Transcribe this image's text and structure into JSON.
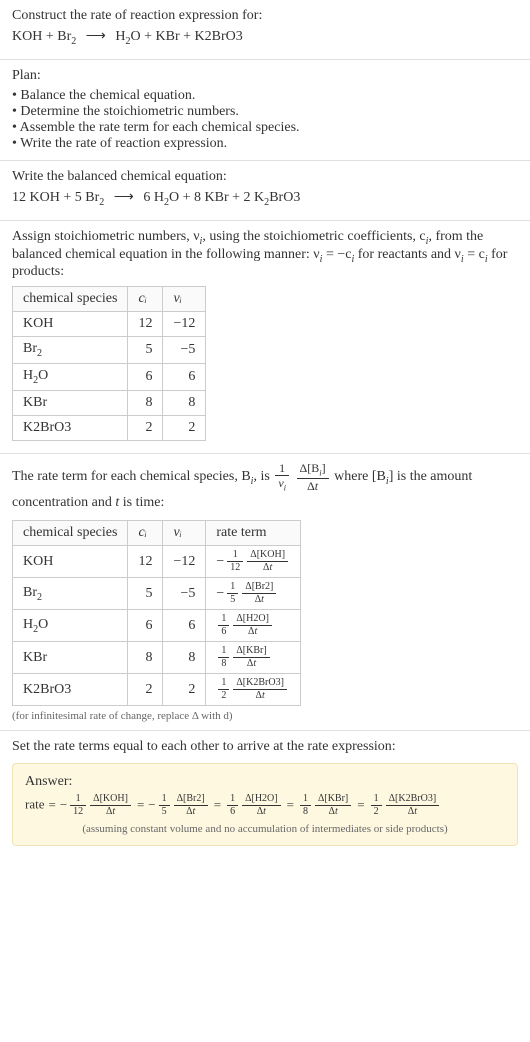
{
  "prompt": {
    "title": "Construct the rate of reaction expression for:",
    "lhs": "KOH + Br",
    "lhs_sub": "2",
    "arrow": "⟶",
    "rhs": "H",
    "rhs_sub1": "2",
    "rhs_cont": "O + KBr + K2BrO3"
  },
  "plan": {
    "title": "Plan:",
    "items": [
      "Balance the chemical equation.",
      "Determine the stoichiometric numbers.",
      "Assemble the rate term for each chemical species.",
      "Write the rate of reaction expression."
    ]
  },
  "balanced": {
    "title": "Write the balanced chemical equation:",
    "text_before": "12 KOH + 5 Br",
    "sub1": "2",
    "arrow": "⟶",
    "after1": "6 H",
    "sub2": "2",
    "after2": "O + 8 KBr + 2 K",
    "sub3": "2",
    "after3": "BrO3"
  },
  "assign": {
    "intro1": "Assign stoichiometric numbers, ν",
    "intro_sub_i": "i",
    "intro2": ", using the stoichiometric coefficients, c",
    "intro3": ", from the balanced chemical equation in the following manner: ν",
    "intro4": " = −c",
    "intro5": " for reactants and ν",
    "intro6": " = c",
    "intro7": " for products:"
  },
  "table1": {
    "head": [
      "chemical species",
      "cᵢ",
      "νᵢ"
    ],
    "rows": [
      {
        "sp": "KOH",
        "c": "12",
        "v": "−12"
      },
      {
        "sp": "Br",
        "sub": "2",
        "c": "5",
        "v": "−5"
      },
      {
        "sp": "H",
        "sub": "2",
        "tail": "O",
        "c": "6",
        "v": "6"
      },
      {
        "sp": "KBr",
        "c": "8",
        "v": "8"
      },
      {
        "sp": "K2BrO3",
        "c": "2",
        "v": "2"
      }
    ]
  },
  "rateterm_intro": {
    "a": "The rate term for each chemical species, B",
    "b": ", is ",
    "frac1_num": "1",
    "frac1_den_nu": "ν",
    "frac1_den_i": "i",
    "frac2_num": "Δ[B",
    "frac2_num_i": "i",
    "frac2_num_close": "]",
    "frac2_den": "Δt",
    "c": " where [B",
    "d": "] is the amount concentration and ",
    "e": "t",
    "f": " is time:"
  },
  "table2": {
    "head": [
      "chemical species",
      "cᵢ",
      "νᵢ",
      "rate term"
    ],
    "rows": [
      {
        "sp": "KOH",
        "c": "12",
        "v": "−12",
        "sign": "−",
        "fnum": "1",
        "fden": "12",
        "delta": "Δ[KOH]",
        "dden": "Δt"
      },
      {
        "sp": "Br",
        "sub": "2",
        "c": "5",
        "v": "−5",
        "sign": "−",
        "fnum": "1",
        "fden": "5",
        "delta": "Δ[Br2]",
        "dden": "Δt"
      },
      {
        "sp": "H",
        "sub": "2",
        "tail": "O",
        "c": "6",
        "v": "6",
        "sign": "",
        "fnum": "1",
        "fden": "6",
        "delta": "Δ[H2O]",
        "dden": "Δt"
      },
      {
        "sp": "KBr",
        "c": "8",
        "v": "8",
        "sign": "",
        "fnum": "1",
        "fden": "8",
        "delta": "Δ[KBr]",
        "dden": "Δt"
      },
      {
        "sp": "K2BrO3",
        "c": "2",
        "v": "2",
        "sign": "",
        "fnum": "1",
        "fden": "2",
        "delta": "Δ[K2BrO3]",
        "dden": "Δt"
      }
    ],
    "note": "(for infinitesimal rate of change, replace Δ with d)"
  },
  "set_equal": "Set the rate terms equal to each other to arrive at the rate expression:",
  "answer": {
    "title": "Answer:",
    "rate_label": "rate",
    "terms": [
      {
        "sign": "−",
        "fnum": "1",
        "fden": "12",
        "delta": "Δ[KOH]",
        "dden": "Δt"
      },
      {
        "sign": "−",
        "fnum": "1",
        "fden": "5",
        "delta": "Δ[Br2]",
        "dden": "Δt"
      },
      {
        "sign": "",
        "fnum": "1",
        "fden": "6",
        "delta": "Δ[H2O]",
        "dden": "Δt"
      },
      {
        "sign": "",
        "fnum": "1",
        "fden": "8",
        "delta": "Δ[KBr]",
        "dden": "Δt"
      },
      {
        "sign": "",
        "fnum": "1",
        "fden": "2",
        "delta": "Δ[K2BrO3]",
        "dden": "Δt"
      }
    ],
    "note": "(assuming constant volume and no accumulation of intermediates or side products)"
  }
}
